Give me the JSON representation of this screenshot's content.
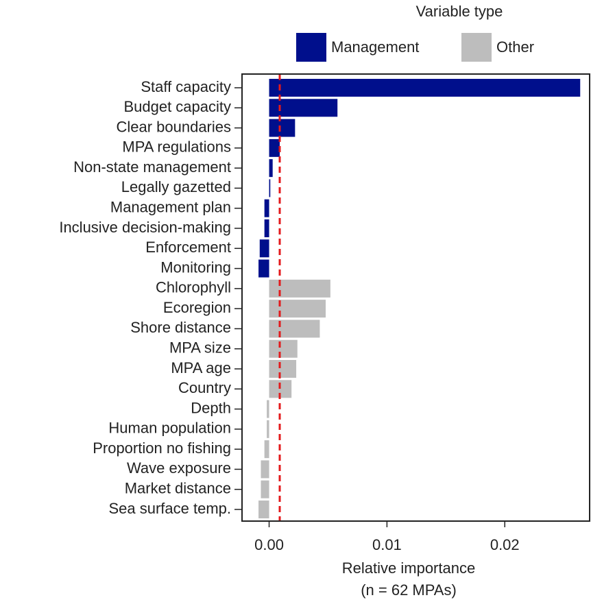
{
  "chart_data": {
    "type": "bar",
    "orientation": "horizontal",
    "legend_title": "Variable type",
    "xlabel": "Relative importance",
    "xlabel_note": "(n = 62 MPAs)",
    "categories": [
      "Staff capacity",
      "Budget capacity",
      "Clear boundaries",
      "MPA regulations",
      "Non-state management",
      "Legally gazetted",
      "Management plan",
      "Inclusive decision-making",
      "Enforcement",
      "Monitoring",
      "Chlorophyll",
      "Ecoregion",
      "Shore distance",
      "MPA size",
      "MPA age",
      "Country",
      "Depth",
      "Human population",
      "Proportion no fishing",
      "Wave exposure",
      "Market distance",
      "Sea surface temp."
    ],
    "series": [
      {
        "name": "Management",
        "color": "#000f8c",
        "values": [
          0.0264,
          0.0058,
          0.0022,
          0.0009,
          0.0003,
          0.0001,
          -0.0004,
          -0.0004,
          -0.0008,
          -0.0009,
          null,
          null,
          null,
          null,
          null,
          null,
          null,
          null,
          null,
          null,
          null,
          null
        ]
      },
      {
        "name": "Other",
        "color": "#bdbdbd",
        "values": [
          null,
          null,
          null,
          null,
          null,
          null,
          null,
          null,
          null,
          null,
          0.0052,
          0.0048,
          0.0043,
          0.0024,
          0.0023,
          0.0019,
          -0.0002,
          -0.0002,
          -0.0004,
          -0.0007,
          -0.0007,
          -0.0009
        ]
      }
    ],
    "reference_line": {
      "value": 0.0009,
      "color": "#e31a1c"
    },
    "xlim": [
      -0.0023,
      0.0272
    ],
    "xticks": [
      {
        "value": 0,
        "label": "0.00"
      },
      0.01,
      0.02
    ]
  }
}
